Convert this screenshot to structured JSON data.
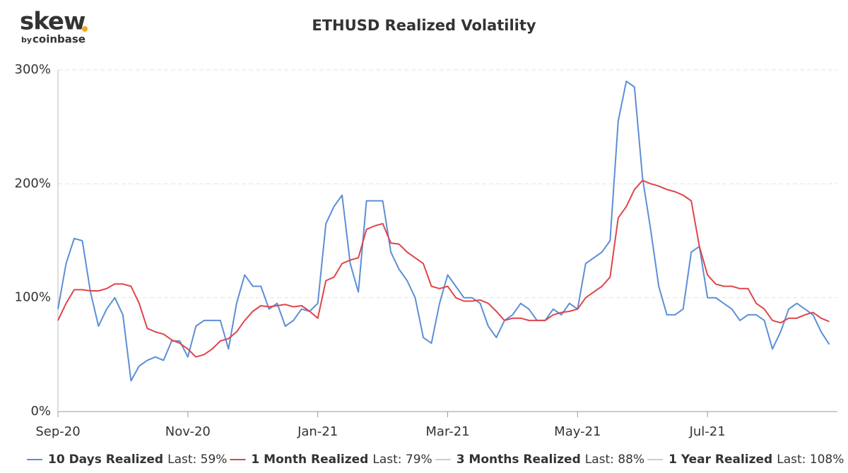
{
  "logo": {
    "text": "skew",
    "by": "by",
    "brand": "coinbase"
  },
  "chart_data": {
    "type": "line",
    "title": "ETHUSD Realized Volatility",
    "categories": [
      "Sep-20",
      null,
      null,
      null,
      null,
      null,
      null,
      null,
      null,
      null,
      null,
      null,
      null,
      null,
      null,
      null,
      "Nov-20",
      null,
      null,
      null,
      null,
      null,
      null,
      null,
      null,
      null,
      null,
      null,
      null,
      null,
      null,
      null,
      "Jan-21",
      null,
      null,
      null,
      null,
      null,
      null,
      null,
      null,
      null,
      null,
      null,
      null,
      null,
      null,
      null,
      "Mar-21",
      null,
      null,
      null,
      null,
      null,
      null,
      null,
      null,
      null,
      null,
      null,
      null,
      null,
      null,
      null,
      "May-21",
      null,
      null,
      null,
      null,
      null,
      null,
      null,
      null,
      null,
      null,
      null,
      null,
      null,
      null,
      null,
      "Jul-21",
      null,
      null,
      null,
      null,
      null,
      null,
      null,
      null,
      null,
      null,
      null,
      null,
      null,
      null,
      null
    ],
    "series": [
      {
        "name": "10 Days Realized",
        "last_label": "Last: 59%",
        "color": "#5b8fd6",
        "values": [
          90,
          130,
          152,
          150,
          105,
          75,
          90,
          100,
          85,
          27,
          40,
          45,
          48,
          45,
          62,
          62,
          48,
          75,
          80,
          80,
          80,
          55,
          95,
          120,
          110,
          110,
          90,
          95,
          75,
          80,
          90,
          88,
          95,
          165,
          180,
          190,
          130,
          105,
          185,
          185,
          185,
          140,
          125,
          115,
          100,
          65,
          60,
          95,
          120,
          110,
          100,
          100,
          95,
          75,
          65,
          80,
          85,
          95,
          90,
          80,
          80,
          90,
          85,
          95,
          90,
          130,
          135,
          140,
          150,
          255,
          290,
          285,
          205,
          160,
          110,
          85,
          85,
          90,
          140,
          145,
          100,
          100,
          95,
          90,
          80,
          85,
          85,
          80,
          55,
          70,
          90,
          95,
          90,
          85,
          70,
          59
        ]
      },
      {
        "name": "1 Month Realized",
        "last_label": "Last: 79%",
        "color": "#e0444a",
        "values": [
          80,
          95,
          107,
          107,
          106,
          106,
          108,
          112,
          112,
          110,
          95,
          73,
          70,
          68,
          63,
          60,
          55,
          48,
          50,
          55,
          62,
          64,
          70,
          80,
          88,
          93,
          92,
          93,
          94,
          92,
          93,
          88,
          82,
          115,
          118,
          130,
          133,
          135,
          160,
          163,
          165,
          148,
          147,
          140,
          135,
          130,
          110,
          108,
          110,
          100,
          97,
          97,
          98,
          95,
          88,
          80,
          82,
          82,
          80,
          80,
          80,
          85,
          87,
          88,
          90,
          100,
          105,
          110,
          118,
          170,
          180,
          195,
          203,
          200,
          198,
          195,
          193,
          190,
          185,
          145,
          120,
          112,
          110,
          110,
          108,
          108,
          95,
          90,
          80,
          78,
          82,
          82,
          85,
          87,
          82,
          79
        ]
      }
    ],
    "hidden_series": [
      {
        "name": "3 Months Realized",
        "last_label": "Last: 88%"
      },
      {
        "name": "1 Year Realized",
        "last_label": "Last: 108%"
      }
    ],
    "ylim": [
      0,
      300
    ],
    "yticks": [
      {
        "value": 0,
        "label": "0%"
      },
      {
        "value": 100,
        "label": "100%"
      },
      {
        "value": 200,
        "label": "200%"
      },
      {
        "value": 300,
        "label": "300%"
      }
    ],
    "grid": true
  }
}
